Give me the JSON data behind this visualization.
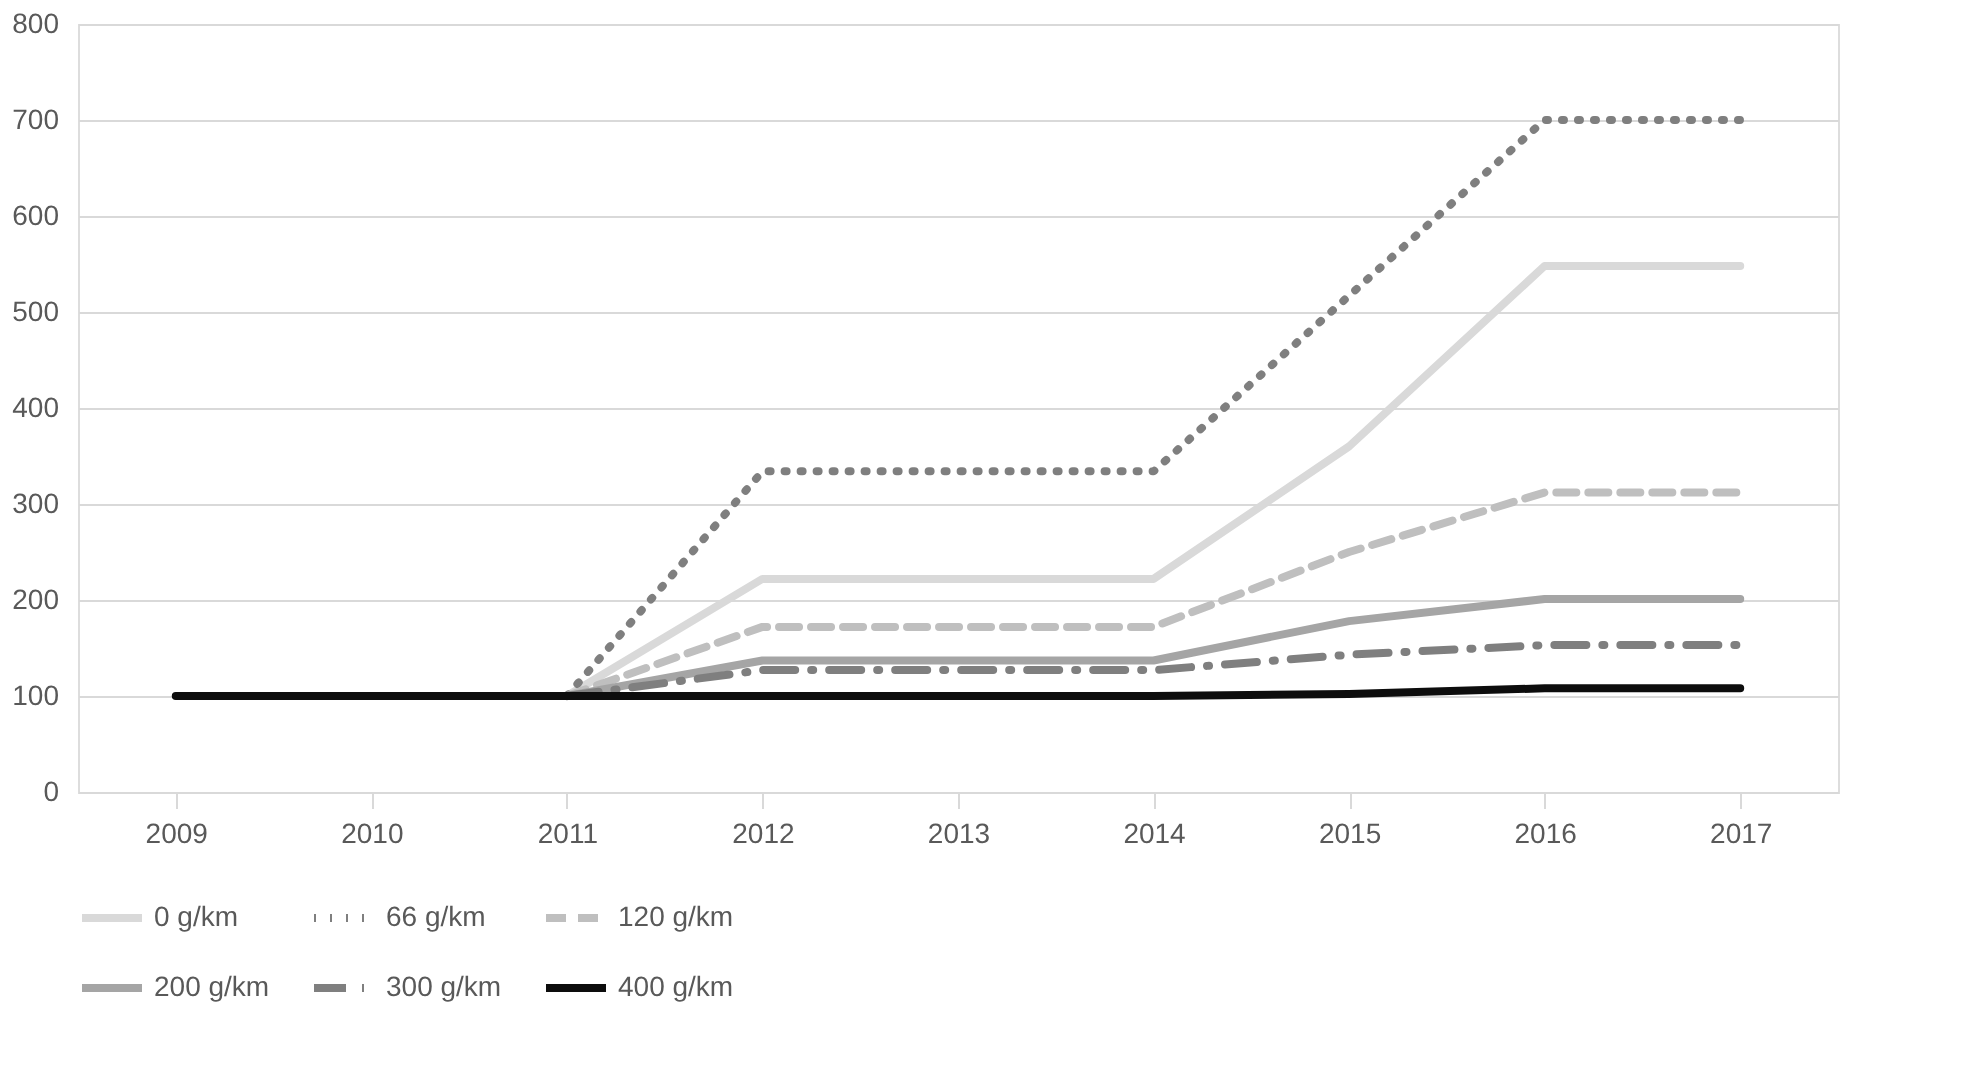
{
  "chart_data": {
    "type": "line",
    "categories": [
      "2009",
      "2010",
      "2011",
      "2012",
      "2013",
      "2014",
      "2015",
      "2016",
      "2017"
    ],
    "series": [
      {
        "name": "0 g/km",
        "color": "#d9d9d9",
        "line_style": "solid",
        "values": [
          null,
          null,
          100,
          222,
          222,
          222,
          360,
          548,
          548
        ]
      },
      {
        "name": "66 g/km",
        "color": "#7f7f7f",
        "line_style": "dotted",
        "values": [
          null,
          null,
          100,
          334,
          334,
          334,
          517,
          700,
          700
        ]
      },
      {
        "name": "120 g/km",
        "color": "#bfbfbf",
        "line_style": "dashed",
        "values": [
          null,
          null,
          100,
          172,
          172,
          172,
          250,
          312,
          312
        ]
      },
      {
        "name": "200 g/km",
        "color": "#a5a5a5",
        "line_style": "solid",
        "values": [
          null,
          null,
          100,
          137,
          137,
          137,
          178,
          201,
          201
        ]
      },
      {
        "name": "300 g/km",
        "color": "#7f7f7f",
        "line_style": "dashdot",
        "values": [
          null,
          null,
          100,
          127,
          127,
          127,
          143,
          153,
          153
        ]
      },
      {
        "name": "400 g/km",
        "color": "#0d0d0d",
        "line_style": "solid",
        "values": [
          100,
          100,
          100,
          100,
          100,
          100,
          102,
          108,
          108
        ]
      }
    ],
    "ylim": [
      0,
      800
    ],
    "yticks": [
      0,
      100,
      200,
      300,
      400,
      500,
      600,
      700,
      800
    ],
    "grid": "y",
    "legend": "bottom",
    "marker": "none"
  }
}
